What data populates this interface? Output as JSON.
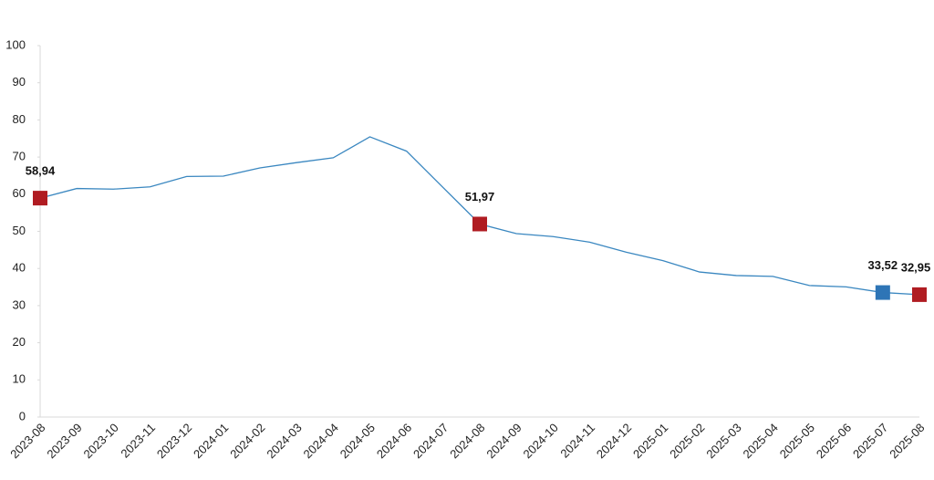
{
  "chart_data": {
    "type": "line",
    "categories": [
      "2023-08",
      "2023-09",
      "2023-10",
      "2023-11",
      "2023-12",
      "2024-01",
      "2024-02",
      "2024-03",
      "2024-04",
      "2024-05",
      "2024-06",
      "2024-07",
      "2024-08",
      "2024-09",
      "2024-10",
      "2024-11",
      "2024-12",
      "2025-01",
      "2025-02",
      "2025-03",
      "2025-04",
      "2025-05",
      "2025-06",
      "2025-07",
      "2025-08"
    ],
    "series": [
      {
        "color": "#3a87c0",
        "values": [
          58.94,
          61.53,
          61.36,
          61.98,
          64.77,
          64.86,
          67.07,
          68.5,
          69.8,
          75.45,
          71.6,
          61.78,
          51.97,
          49.38,
          48.58,
          47.09,
          44.38,
          42.12,
          39.05,
          38.1,
          37.86,
          35.41,
          35.05,
          33.52,
          32.95
        ],
        "value_labels": [
          "58,94",
          null,
          null,
          null,
          null,
          null,
          null,
          null,
          null,
          null,
          null,
          null,
          "51,97",
          null,
          null,
          null,
          null,
          null,
          null,
          null,
          null,
          null,
          null,
          "33,52",
          "32,95"
        ],
        "marker_colors": [
          "#b01c22",
          null,
          null,
          null,
          null,
          null,
          null,
          null,
          null,
          null,
          null,
          null,
          "#b01c22",
          null,
          null,
          null,
          null,
          null,
          null,
          null,
          null,
          null,
          null,
          "#2e75b6",
          "#b01c22"
        ]
      }
    ],
    "ylim": [
      0,
      100
    ],
    "yticks": [
      0,
      10,
      20,
      30,
      40,
      50,
      60,
      70,
      80,
      90,
      100
    ]
  }
}
